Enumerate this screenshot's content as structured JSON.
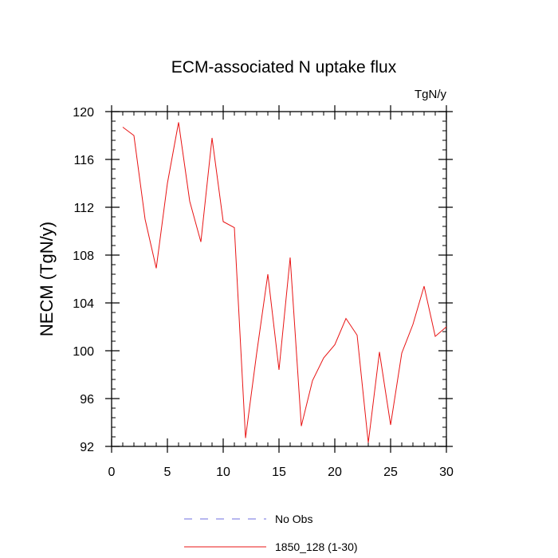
{
  "chart_data": {
    "type": "line",
    "title": "ECM-associated N uptake flux",
    "units_label": "TgN/y",
    "xlabel": "",
    "ylabel": "NECM  (TgN/y)",
    "xlim": [
      0,
      30
    ],
    "ylim": [
      92,
      120
    ],
    "x_ticks": [
      0,
      5,
      10,
      15,
      20,
      25,
      30
    ],
    "x_minor_step": 1,
    "y_ticks": [
      92,
      96,
      100,
      104,
      108,
      112,
      116,
      120
    ],
    "y_minor_step": 0.8,
    "grid": false,
    "legend_position": "bottom-center",
    "series": [
      {
        "name": "No Obs",
        "style": "dashed",
        "color": "#6f6fe0",
        "x": [],
        "values": []
      },
      {
        "name": "1850_128 (1-30)",
        "style": "solid",
        "color": "#e81414",
        "x": [
          1,
          2,
          3,
          4,
          5,
          6,
          7,
          8,
          9,
          10,
          11,
          12,
          13,
          14,
          15,
          16,
          17,
          18,
          19,
          20,
          21,
          22,
          23,
          24,
          25,
          26,
          27,
          28,
          29,
          30
        ],
        "values": [
          118.7,
          118.0,
          111.0,
          106.9,
          114.0,
          119.1,
          112.5,
          109.1,
          117.8,
          110.8,
          110.3,
          92.7,
          99.8,
          106.4,
          98.4,
          107.8,
          93.7,
          97.5,
          99.4,
          100.5,
          102.7,
          101.3,
          92.3,
          99.9,
          93.8,
          99.8,
          102.2,
          105.4,
          101.2,
          102.0
        ]
      }
    ]
  }
}
